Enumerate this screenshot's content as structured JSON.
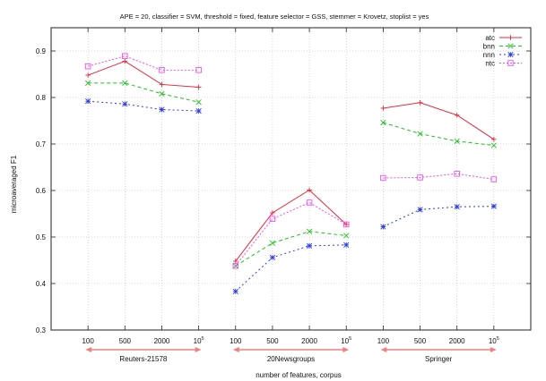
{
  "chart_data": {
    "type": "line",
    "title": "APE = 20, classifier = SVM, threshold = fixed, feature selector = GSS, stemmer = Krovetz, stoplist = yes",
    "xlabel": "number of features, corpus",
    "ylabel": "microaveraged F1",
    "ylim": [
      0.3,
      0.95
    ],
    "yticks": [
      "0.3",
      "0.4",
      "0.5",
      "0.6",
      "0.7",
      "0.8",
      "0.9"
    ],
    "grid": true,
    "legend_position": "top-right",
    "groups": [
      {
        "name": "Reuters-21578",
        "categories": [
          "100",
          "500",
          "2000",
          "10^5"
        ]
      },
      {
        "name": "20Newsgroups",
        "categories": [
          "100",
          "500",
          "2000",
          "10^5"
        ]
      },
      {
        "name": "Springer",
        "categories": [
          "100",
          "500",
          "2000",
          "10^5"
        ]
      }
    ],
    "series": [
      {
        "name": "atc",
        "color": "#e8283c",
        "marker": "plus",
        "dash": "",
        "values": [
          [
            0.848,
            0.878,
            0.828,
            0.822
          ],
          [
            0.448,
            0.552,
            0.601,
            0.527
          ],
          [
            0.777,
            0.789,
            0.762,
            0.71
          ]
        ]
      },
      {
        "name": "bnn",
        "color": "#22c022",
        "marker": "x",
        "dash": "4,3",
        "values": [
          [
            0.831,
            0.831,
            0.808,
            0.79
          ],
          [
            0.438,
            0.487,
            0.512,
            0.503
          ],
          [
            0.746,
            0.722,
            0.706,
            0.697
          ]
        ]
      },
      {
        "name": "nnn",
        "color": "#2f3fe0",
        "marker": "star",
        "dash": "2,3",
        "values": [
          [
            0.792,
            0.786,
            0.774,
            0.771
          ],
          [
            0.383,
            0.456,
            0.481,
            0.483
          ],
          [
            0.522,
            0.559,
            0.565,
            0.566
          ]
        ]
      },
      {
        "name": "ntc",
        "color": "#f050f0",
        "marker": "square",
        "dash": "2,2",
        "values": [
          [
            0.867,
            0.889,
            0.859,
            0.859
          ],
          [
            0.438,
            0.539,
            0.574,
            0.527
          ],
          [
            0.627,
            0.628,
            0.636,
            0.624
          ]
        ]
      }
    ]
  }
}
